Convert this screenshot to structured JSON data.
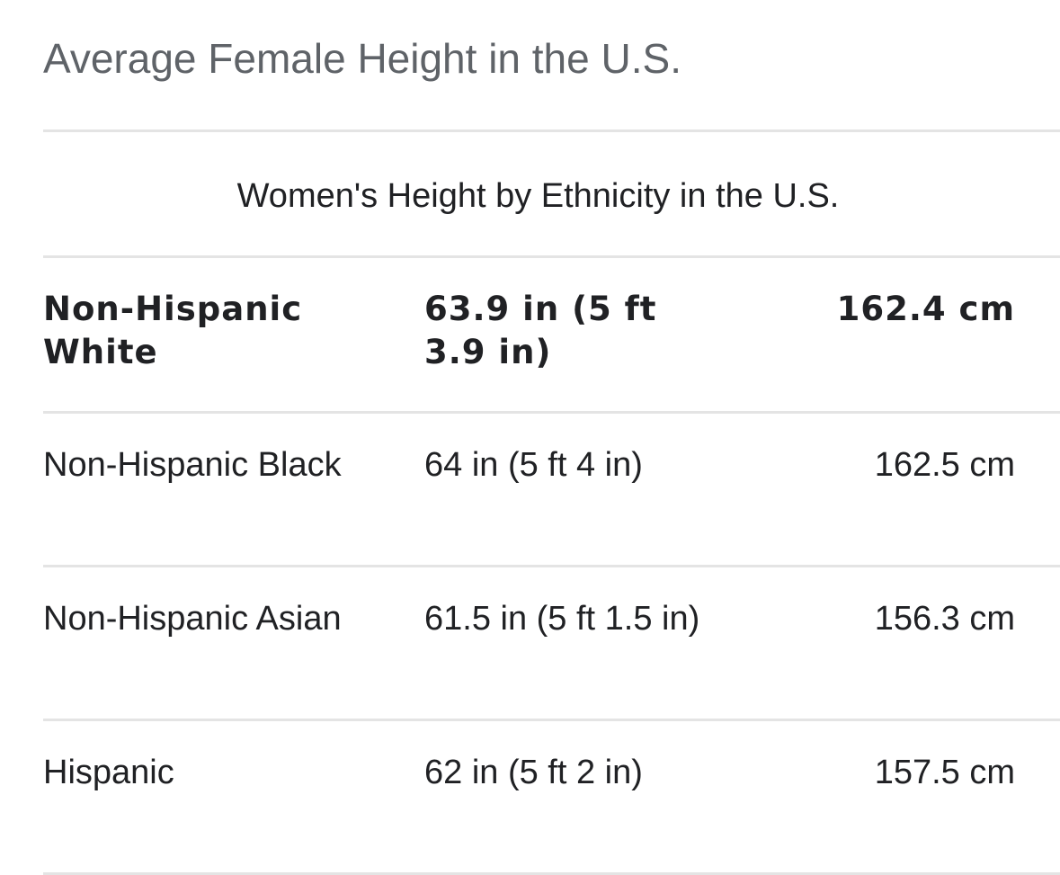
{
  "title": "Average Female Height in the U.S.",
  "table": {
    "caption": "Women's Height by Ethnicity in the U.S.",
    "rows": [
      {
        "ethnicity": "Non-Hispanic White",
        "inches": "63.9 in (5 ft 3.9 in)",
        "cm": "162.4 cm"
      },
      {
        "ethnicity": "Non-Hispanic Black",
        "inches": "64 in (5 ft 4 in)",
        "cm": "162.5 cm"
      },
      {
        "ethnicity": "Non-Hispanic Asian",
        "inches": "61.5 in (5 ft 1.5 in)",
        "cm": "156.3 cm"
      },
      {
        "ethnicity": "Hispanic",
        "inches": "62 in (5 ft 2 in)",
        "cm": "157.5 cm"
      }
    ]
  }
}
